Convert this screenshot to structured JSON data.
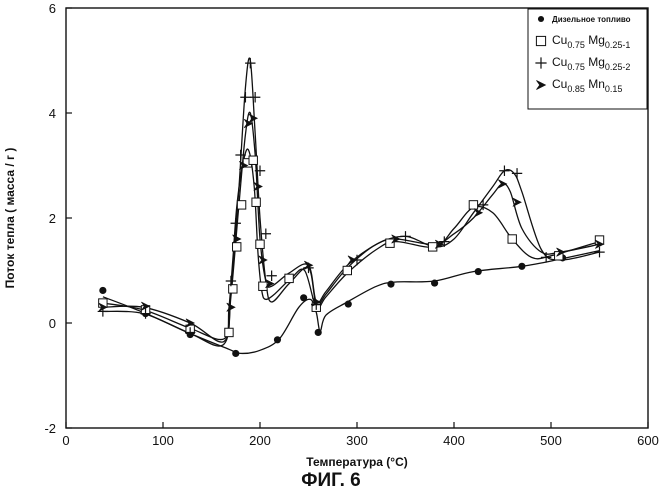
{
  "figure": {
    "caption": "ФИГ. 6"
  },
  "chart_data": {
    "type": "line",
    "xlabel": "Температура (°С)",
    "ylabel": "Поток тепла ( масса / г )",
    "xlim": [
      0,
      600
    ],
    "ylim": [
      -2,
      6
    ],
    "x_ticks": [
      0,
      100,
      200,
      300,
      400,
      500,
      600
    ],
    "y_ticks": [
      -2,
      0,
      2,
      4,
      6
    ],
    "grid": false,
    "legend_position": "top-right",
    "series": [
      {
        "name": "Дизельное топливо",
        "marker": "filled-circle",
        "x": [
          38,
          80,
          128,
          168,
          180,
          200,
          220,
          240,
          252,
          258,
          262,
          268,
          290,
          320,
          340,
          380,
          420,
          470,
          510,
          550
        ],
        "y": [
          0.5,
          0.2,
          -0.2,
          -0.5,
          -0.58,
          -0.52,
          -0.3,
          0.3,
          0.45,
          0.2,
          -0.15,
          0.15,
          0.4,
          0.7,
          0.78,
          0.8,
          0.98,
          1.08,
          1.22,
          1.38
        ],
        "markers_x": [
          38,
          82,
          128,
          175,
          218,
          245,
          260,
          291,
          335,
          380,
          425,
          470,
          512
        ],
        "markers_y": [
          0.62,
          0.18,
          -0.22,
          -0.58,
          -0.32,
          0.48,
          -0.18,
          0.36,
          0.74,
          0.76,
          0.98,
          1.08,
          1.24
        ]
      },
      {
        "name": "Cu0.75 Mg0.25-1",
        "label_parts": {
          "base1": "Cu",
          "sub1": "0.75",
          "base2": " Mg",
          "sub2": "0.25-1"
        },
        "marker": "open-square",
        "x": [
          38,
          80,
          128,
          163,
          168,
          172,
          176,
          182,
          188,
          194,
          198,
          202,
          206,
          215,
          232,
          246,
          258,
          268,
          290,
          320,
          340,
          380,
          400,
          420,
          440,
          460,
          480,
          500,
          550
        ],
        "y": [
          0.38,
          0.25,
          -0.1,
          -0.3,
          0.3,
          1.2,
          2.2,
          3.0,
          3.3,
          2.6,
          1.3,
          0.6,
          0.45,
          0.55,
          0.85,
          1.0,
          0.3,
          0.5,
          0.95,
          1.4,
          1.55,
          1.45,
          1.8,
          2.2,
          2.1,
          1.6,
          1.25,
          1.28,
          1.55
        ],
        "markers_x": [
          38,
          82,
          128,
          168,
          172,
          176,
          181,
          187,
          193,
          196,
          200,
          203,
          230,
          258,
          290,
          334,
          378,
          420,
          460,
          508,
          550
        ],
        "markers_y": [
          0.38,
          0.25,
          -0.12,
          -0.18,
          0.65,
          1.45,
          2.25,
          3.05,
          3.1,
          2.3,
          1.5,
          0.7,
          0.85,
          0.3,
          1.0,
          1.52,
          1.45,
          2.25,
          1.6,
          1.28,
          1.58
        ]
      },
      {
        "name": "Cu0.75 Mg0.25-2",
        "label_parts": {
          "base1": "Cu",
          "sub1": "0.75",
          "base2": " Mg",
          "sub2": "0.25-2"
        },
        "marker": "plus",
        "x": [
          38,
          80,
          128,
          163,
          170,
          178,
          185,
          190,
          195,
          200,
          206,
          212,
          230,
          250,
          258,
          268,
          290,
          320,
          350,
          380,
          400,
          420,
          440,
          452,
          462,
          470,
          490,
          510,
          550
        ],
        "y": [
          0.22,
          0.18,
          -0.2,
          -0.4,
          0.6,
          2.5,
          4.5,
          5.0,
          3.6,
          2.0,
          0.8,
          0.4,
          0.75,
          1.05,
          0.35,
          0.55,
          1.05,
          1.5,
          1.65,
          1.45,
          1.6,
          2.1,
          2.6,
          2.9,
          2.85,
          2.5,
          1.4,
          1.2,
          1.35
        ],
        "markers_x": [
          38,
          82,
          128,
          170,
          175,
          180,
          185,
          190,
          195,
          200,
          206,
          212,
          250,
          258,
          300,
          350,
          390,
          430,
          452,
          465,
          495,
          550
        ],
        "markers_y": [
          0.22,
          0.18,
          -0.18,
          0.8,
          1.9,
          3.2,
          4.3,
          4.95,
          4.3,
          2.9,
          1.7,
          0.9,
          1.05,
          0.35,
          1.2,
          1.65,
          1.55,
          2.25,
          2.9,
          2.85,
          1.25,
          1.35
        ]
      },
      {
        "name": "Cu0.85 Mn0.15",
        "label_parts": {
          "base1": "Cu",
          "sub1": "0.85",
          "base2": " Mn",
          "sub2": "0.15"
        },
        "marker": "arrow-right",
        "x": [
          38,
          80,
          128,
          163,
          170,
          178,
          185,
          190,
          195,
          200,
          206,
          212,
          230,
          250,
          258,
          268,
          290,
          320,
          340,
          380,
          400,
          420,
          440,
          450,
          458,
          470,
          490,
          510,
          550
        ],
        "y": [
          0.3,
          0.3,
          0.0,
          -0.35,
          0.5,
          2.2,
          3.6,
          4.0,
          3.2,
          1.6,
          0.8,
          0.7,
          0.95,
          1.1,
          0.4,
          0.6,
          1.1,
          1.5,
          1.6,
          1.5,
          1.7,
          2.0,
          2.45,
          2.65,
          2.5,
          1.8,
          1.35,
          1.35,
          1.5
        ],
        "markers_x": [
          38,
          82,
          128,
          170,
          176,
          183,
          188,
          193,
          198,
          203,
          210,
          250,
          258,
          295,
          340,
          385,
          425,
          450,
          465,
          510,
          550
        ],
        "markers_y": [
          0.3,
          0.32,
          0.0,
          0.3,
          1.6,
          3.0,
          3.8,
          3.9,
          2.6,
          1.2,
          0.75,
          1.1,
          0.4,
          1.2,
          1.6,
          1.5,
          2.1,
          2.65,
          2.3,
          1.35,
          1.5
        ]
      }
    ]
  }
}
